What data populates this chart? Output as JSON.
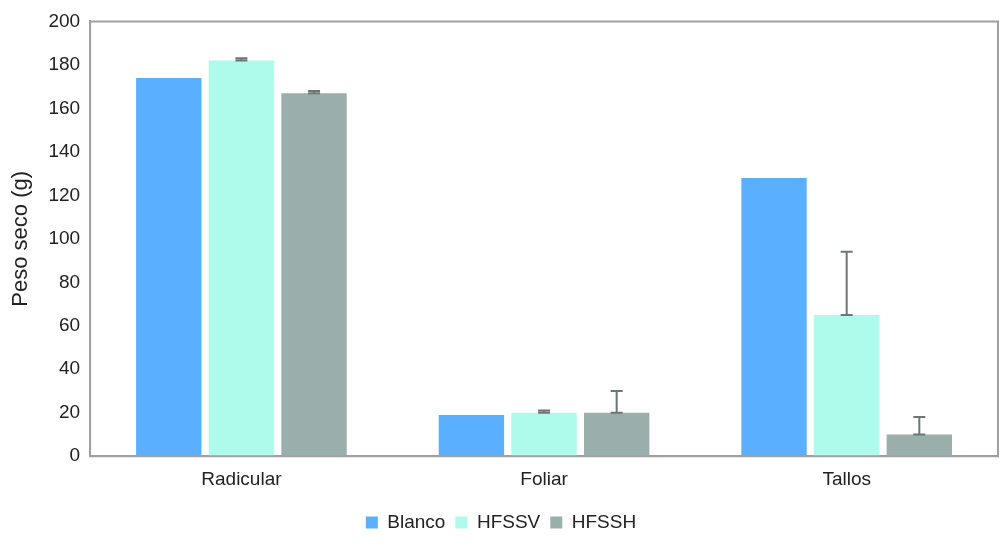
{
  "chart_data": {
    "type": "bar",
    "ylabel": "Peso seco (g)",
    "categories": [
      "Radicular",
      "Foliar",
      "Tallos"
    ],
    "series": [
      {
        "name": "Blanco",
        "color": "#5ab0ff",
        "values": [
          174,
          19,
          128
        ]
      },
      {
        "name": "HFSSV",
        "color": "#aefbeb",
        "values": [
          182,
          20,
          65
        ],
        "errors": [
          [
            182,
            183
          ],
          [
            20,
            21
          ],
          [
            65,
            94
          ]
        ]
      },
      {
        "name": "HFSSH",
        "color": "#9aaeac",
        "values": [
          167,
          20,
          10
        ],
        "errors": [
          [
            167,
            168
          ],
          [
            20,
            30
          ],
          [
            10,
            18
          ]
        ]
      }
    ],
    "ylim": [
      0,
      200
    ],
    "yticks": [
      0,
      20,
      40,
      60,
      80,
      100,
      120,
      140,
      160,
      180,
      200
    ],
    "grid": false,
    "legend": "bottom"
  }
}
